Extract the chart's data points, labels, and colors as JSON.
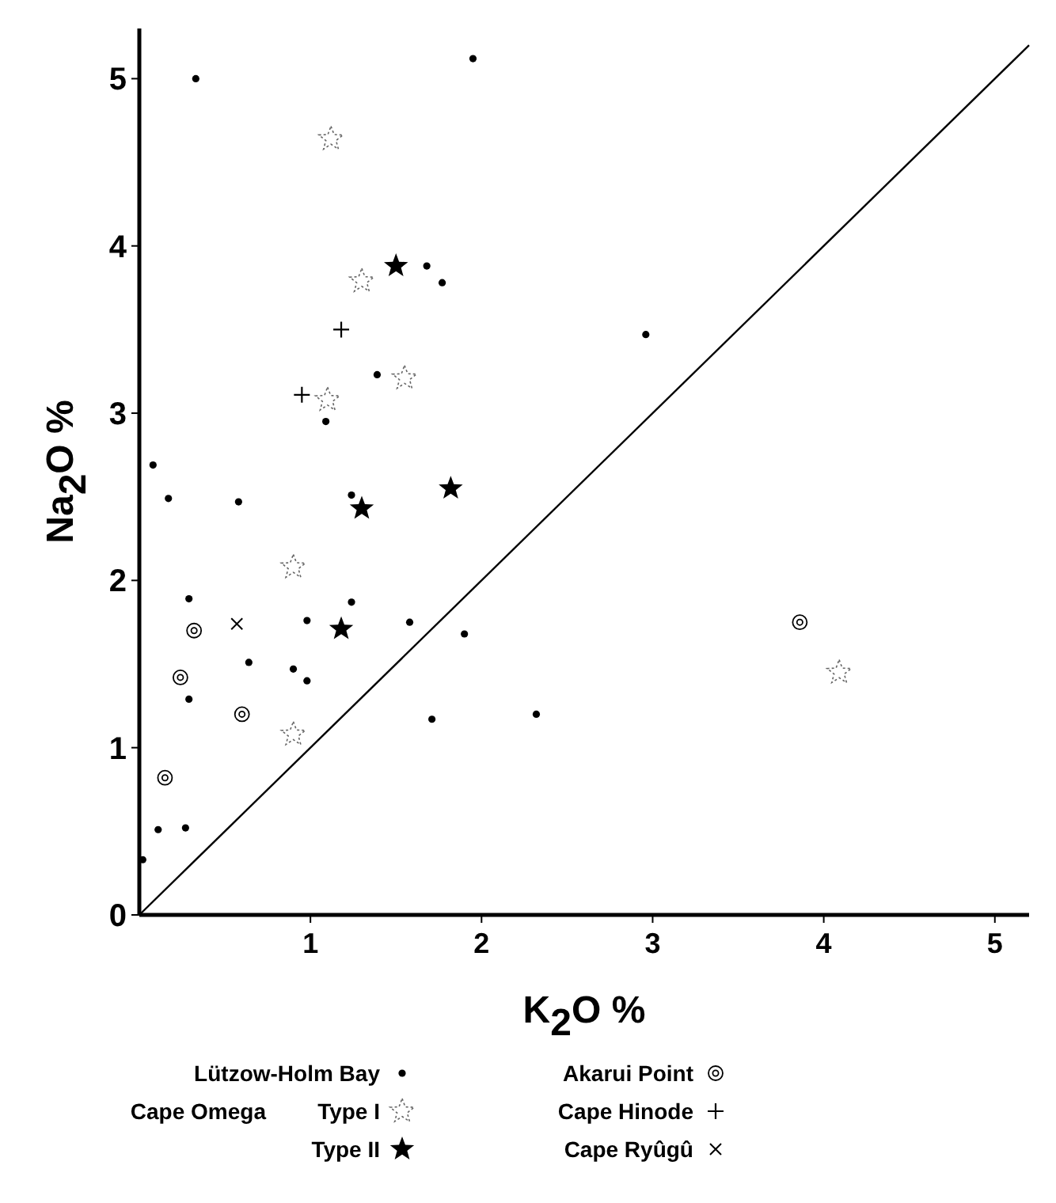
{
  "chart_data": {
    "type": "scatter",
    "xlabel": "K$_{2}$O  %",
    "ylabel": "Na$_{2}$O %",
    "xlim": [
      0,
      5.2
    ],
    "ylim": [
      0,
      5.3
    ],
    "xticks": [
      1,
      2,
      3,
      4,
      5
    ],
    "yticks": [
      0,
      1,
      2,
      3,
      4,
      5
    ],
    "grid": false,
    "legend": "bottom",
    "annotations": [
      "Cape Omega"
    ],
    "series": [
      {
        "name": "Lützow-Holm Bay",
        "color": "#000000",
        "marker": "circle",
        "x": [
          0.33,
          1.95,
          1.68,
          1.77,
          1.39,
          1.09,
          0.08,
          0.17,
          0.58,
          1.24,
          0.29,
          1.24,
          0.98,
          1.58,
          1.9,
          0.64,
          0.9,
          0.98,
          0.29,
          1.71,
          2.32,
          0.11,
          0.27,
          0.02,
          2.96
        ],
        "values": [
          5.0,
          5.12,
          3.88,
          3.78,
          3.23,
          2.95,
          2.69,
          2.49,
          2.47,
          2.51,
          1.89,
          1.87,
          1.76,
          1.75,
          1.68,
          1.51,
          1.47,
          1.4,
          1.29,
          1.17,
          1.2,
          0.51,
          0.52,
          0.33,
          3.47
        ]
      },
      {
        "name": "Type I",
        "color": "#666666",
        "marker": "star-open",
        "x": [
          1.12,
          1.3,
          1.55,
          1.1,
          0.9,
          0.9,
          4.09
        ],
        "values": [
          4.64,
          3.79,
          3.21,
          3.08,
          2.08,
          1.08,
          1.45
        ]
      },
      {
        "name": "Type II",
        "color": "#000000",
        "marker": "star",
        "x": [
          1.5,
          1.3,
          1.82,
          1.18
        ],
        "values": [
          3.88,
          2.43,
          2.55,
          1.71
        ]
      },
      {
        "name": "Akarui Point",
        "color": "#000000",
        "marker": "circle-dot",
        "x": [
          0.32,
          0.24,
          0.6,
          0.15,
          3.86
        ],
        "values": [
          1.7,
          1.42,
          1.2,
          0.82,
          1.75
        ]
      },
      {
        "name": "Cape Hinode",
        "color": "#000000",
        "marker": "plus",
        "x": [
          1.18,
          0.95
        ],
        "values": [
          3.5,
          3.11
        ]
      },
      {
        "name": "Cape Ryûgû",
        "color": "#000000",
        "marker": "cross",
        "x": [
          0.57
        ],
        "values": [
          1.74
        ]
      },
      {
        "type": "line",
        "color": "#000000",
        "x": [
          0,
          5.2
        ],
        "values": [
          0,
          5.2
        ]
      }
    ]
  }
}
